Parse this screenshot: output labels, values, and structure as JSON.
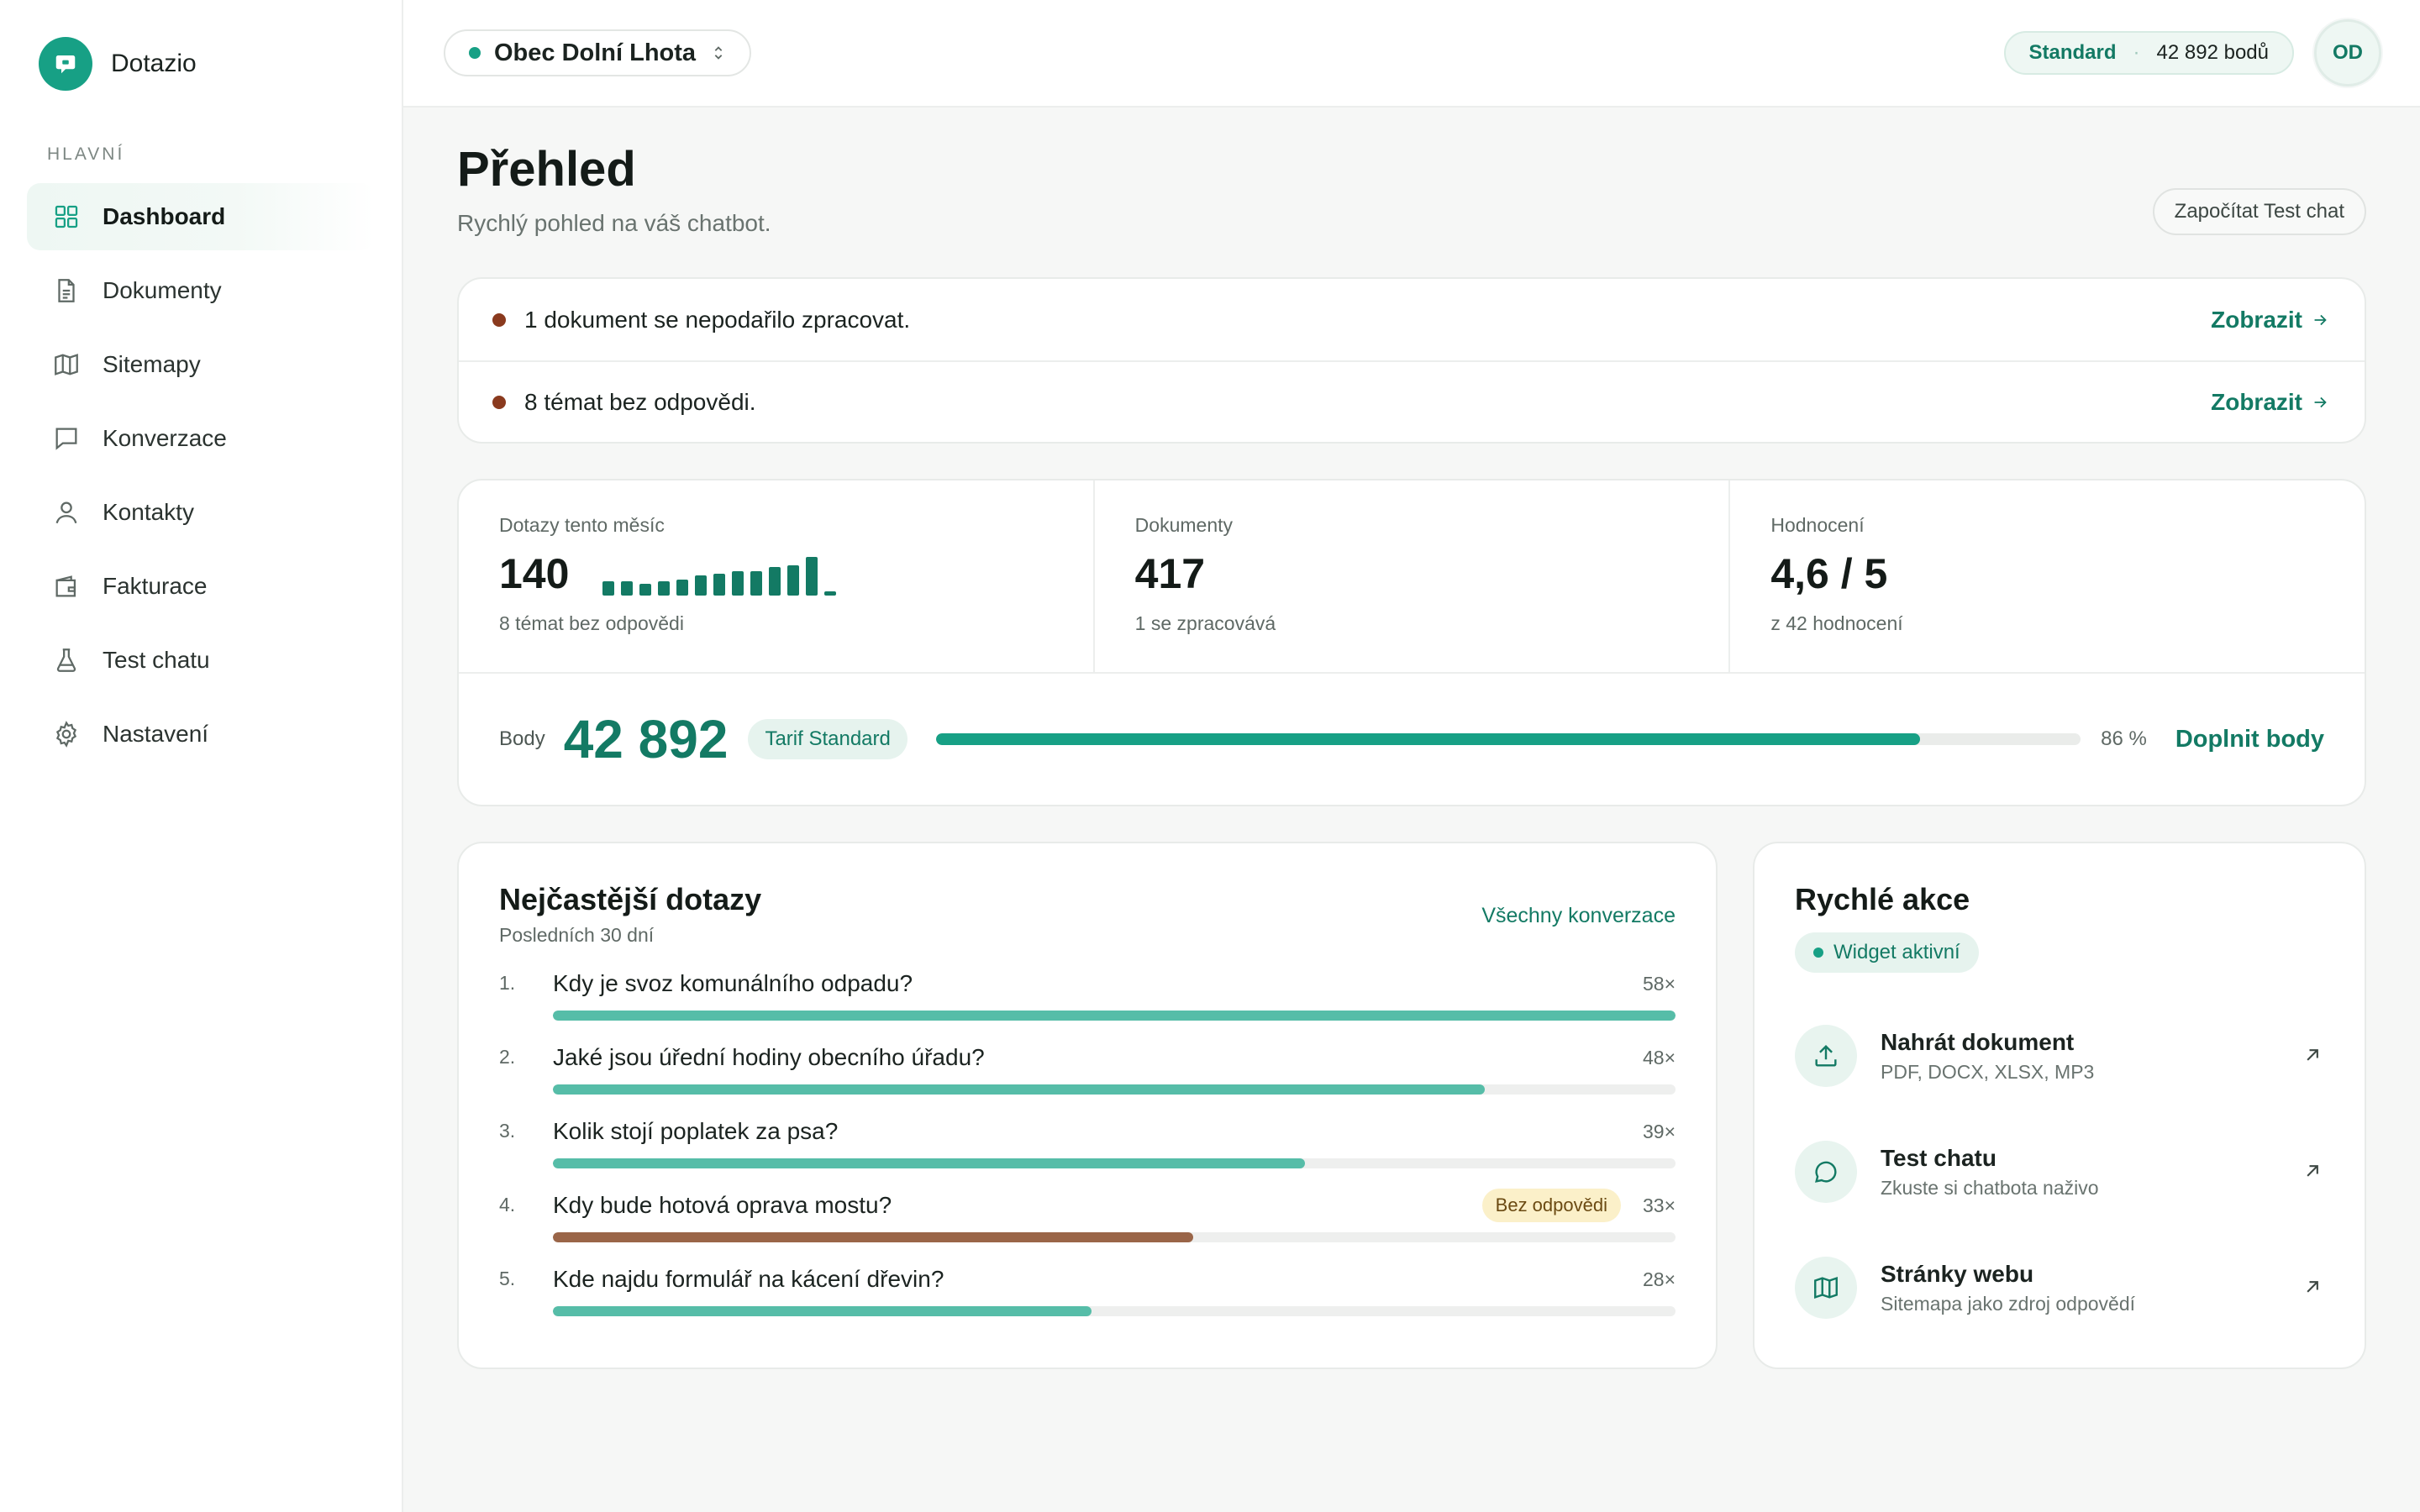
{
  "brand": {
    "name": "Dotazio"
  },
  "sidebar": {
    "section": "HLAVNÍ",
    "items": [
      {
        "label": "Dashboard",
        "icon": "grid-icon"
      },
      {
        "label": "Dokumenty",
        "icon": "document-icon"
      },
      {
        "label": "Sitemapy",
        "icon": "map-icon"
      },
      {
        "label": "Konverzace",
        "icon": "chat-icon"
      },
      {
        "label": "Kontakty",
        "icon": "user-icon"
      },
      {
        "label": "Fakturace",
        "icon": "wallet-icon"
      },
      {
        "label": "Test chatu",
        "icon": "flask-icon"
      },
      {
        "label": "Nastavení",
        "icon": "gear-icon"
      }
    ]
  },
  "topbar": {
    "org": "Obec Dolní Lhota",
    "plan": "Standard",
    "points": "42 892 bodů",
    "avatar": "OD"
  },
  "page": {
    "title": "Přehled",
    "subtitle": "Rychlý pohled na váš chatbot.",
    "test_chat_button": "Započítat Test chat"
  },
  "alerts": [
    {
      "text": "1 dokument se nepodařilo zpracovat.",
      "link": "Zobrazit"
    },
    {
      "text": "8 témat bez odpovědi.",
      "link": "Zobrazit"
    }
  ],
  "stats": {
    "queries": {
      "label": "Dotazy tento měsíc",
      "value": "140",
      "sub": "8 témat bez odpovědi",
      "spark": [
        0.35,
        0.35,
        0.3,
        0.35,
        0.4,
        0.5,
        0.55,
        0.6,
        0.6,
        0.7,
        0.75,
        0.95,
        0.1
      ]
    },
    "documents": {
      "label": "Dokumenty",
      "value": "417",
      "sub": "1 se zpracovává"
    },
    "rating": {
      "label": "Hodnocení",
      "value": "4,6 / 5",
      "sub": "z 42 hodnocení"
    }
  },
  "points_bar": {
    "label": "Body",
    "value": "42 892",
    "tarif": "Tarif Standard",
    "percent": 86,
    "percent_label": "86 %",
    "topup": "Doplnit body"
  },
  "faq": {
    "title": "Nejčastější dotazy",
    "subtitle": "Posledních 30 dní",
    "link": "Všechny konverzace",
    "items": [
      {
        "num": "1.",
        "question": "Kdy je svoz komunálního odpadu?",
        "count": "58×",
        "fraction": 1.0,
        "badge": "",
        "warn": false
      },
      {
        "num": "2.",
        "question": "Jaké jsou úřední hodiny obecního úřadu?",
        "count": "48×",
        "fraction": 0.83,
        "badge": "",
        "warn": false
      },
      {
        "num": "3.",
        "question": "Kolik stojí poplatek za psa?",
        "count": "39×",
        "fraction": 0.67,
        "badge": "",
        "warn": false
      },
      {
        "num": "4.",
        "question": "Kdy bude hotová oprava mostu?",
        "count": "33×",
        "fraction": 0.57,
        "badge": "Bez odpovědi",
        "warn": true
      },
      {
        "num": "5.",
        "question": "Kde najdu formulář na kácení dřevin?",
        "count": "28×",
        "fraction": 0.48,
        "badge": "",
        "warn": false
      }
    ]
  },
  "actions": {
    "title": "Rychlé akce",
    "widget": "Widget aktivní",
    "items": [
      {
        "title": "Nahrát dokument",
        "desc": "PDF, DOCX, XLSX, MP3",
        "icon": "upload-icon"
      },
      {
        "title": "Test chatu",
        "desc": "Zkuste si chatbota naživo",
        "icon": "chat-icon"
      },
      {
        "title": "Stránky webu",
        "desc": "Sitemapa jako zdroj odpovědí",
        "icon": "map-icon"
      }
    ]
  },
  "colors": {
    "accent": "#137a64",
    "accent_light": "#56bda8",
    "warn": "#9a6548",
    "alert_dot": "#8a3a1e"
  }
}
